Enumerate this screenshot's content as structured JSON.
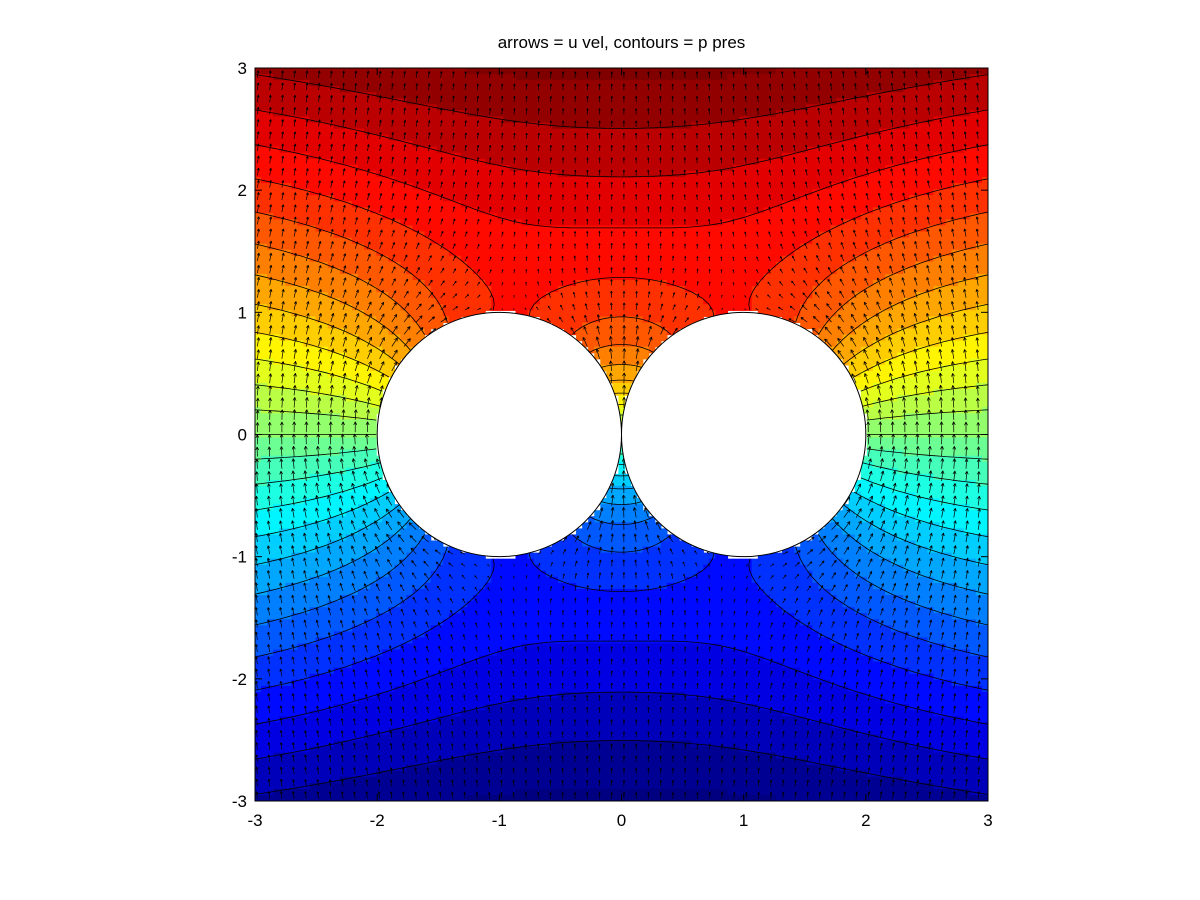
{
  "chart_data": {
    "type": "heatmap",
    "subtype": "filled contour with quiver overlay",
    "title": "arrows = u vel, contours = p pres",
    "xlabel": "",
    "ylabel": "",
    "xlim": [
      -3,
      3
    ],
    "ylim": [
      -3,
      3
    ],
    "xticks": [
      "-3",
      "-2",
      "-1",
      "0",
      "1",
      "2",
      "3"
    ],
    "yticks": [
      "3",
      "2",
      "1",
      "0",
      "-1",
      "-2",
      "-3"
    ],
    "grid": false,
    "colormap": "jet",
    "obstacles": [
      {
        "name": "left cylinder",
        "cx": -1,
        "cy": 0,
        "r": 1
      },
      {
        "name": "right cylinder",
        "cx": 1,
        "cy": 0,
        "r": 1
      }
    ],
    "field": {
      "pressure": "approximately antisymmetric in y: high (red) above the cylinders, low (blue) below, yellow/cyan at the left and right edges",
      "velocity_arrows": "uniform grid of short black arrows, dense spacing ~0.1 data units"
    },
    "colors": {
      "low": "#0000ff",
      "high": "#ff0000",
      "contour_line": "#000000",
      "arrow": "#000000"
    }
  }
}
